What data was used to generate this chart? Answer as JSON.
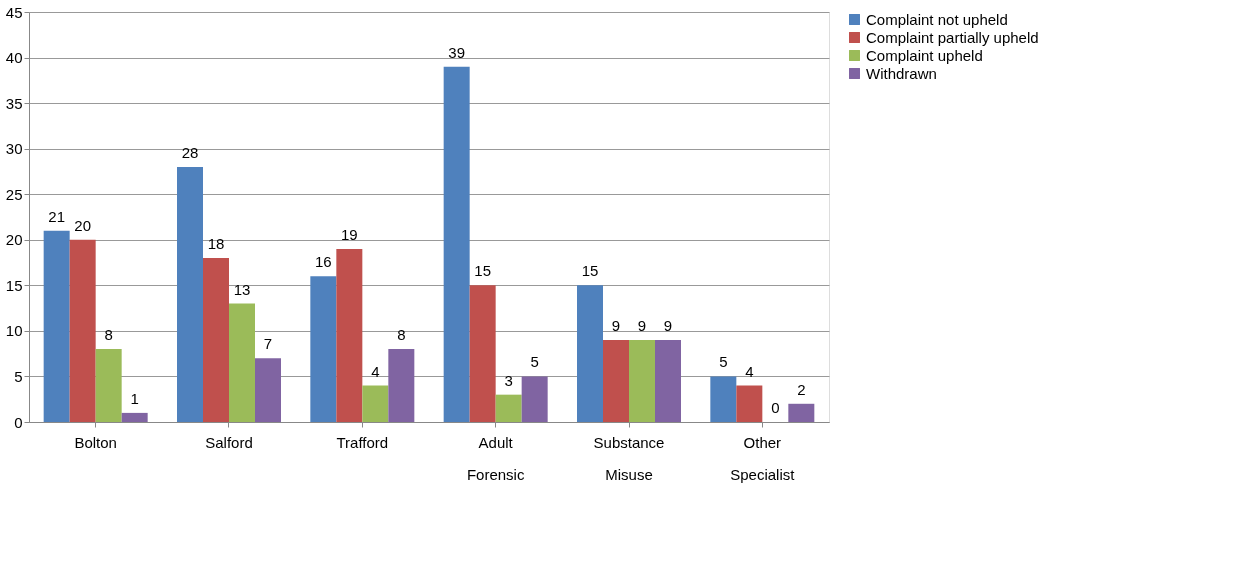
{
  "chart_data": {
    "type": "bar",
    "categories": [
      "Bolton",
      "Salford",
      "Trafford",
      "Adult Forensic",
      "Substance Misuse",
      "Other Specialist"
    ],
    "series": [
      {
        "name": "Complaint not upheld",
        "color": "#4f81bd",
        "values": [
          21,
          28,
          16,
          39,
          15,
          5
        ]
      },
      {
        "name": "Complaint partially upheld",
        "color": "#c0504d",
        "values": [
          20,
          18,
          19,
          15,
          9,
          4
        ]
      },
      {
        "name": "Complaint upheld",
        "color": "#9bbb59",
        "values": [
          8,
          13,
          4,
          3,
          9,
          0
        ]
      },
      {
        "name": "Withdrawn",
        "color": "#8064a2",
        "values": [
          1,
          7,
          8,
          5,
          9,
          2
        ]
      }
    ],
    "ylim": [
      0,
      45
    ],
    "yticks": [
      0,
      5,
      10,
      15,
      20,
      25,
      30,
      35,
      40,
      45
    ],
    "grid": "y",
    "legend": "right",
    "data_labels": true
  }
}
